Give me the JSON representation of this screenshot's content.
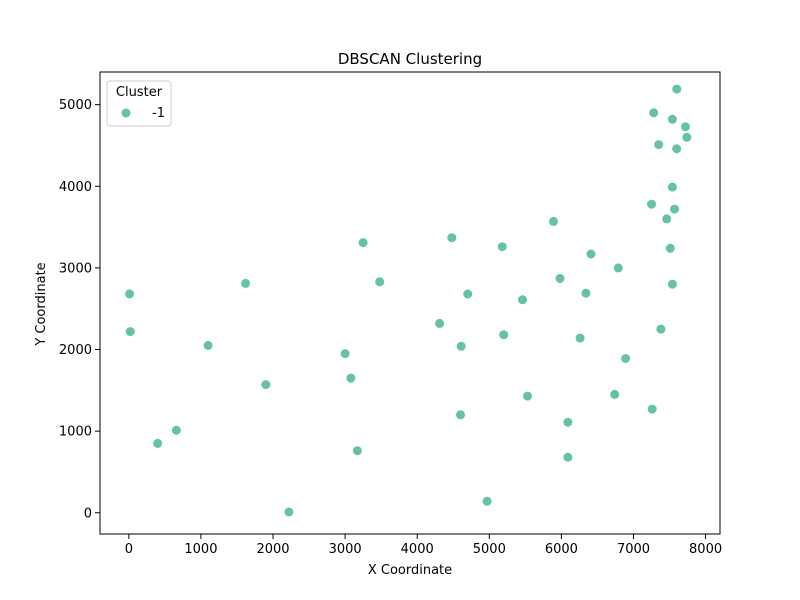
{
  "chart_data": {
    "type": "scatter",
    "title": "DBSCAN Clustering",
    "xlabel": "X Coordinate",
    "ylabel": "Y Coordinate",
    "xlim": [
      -400,
      8200
    ],
    "ylim": [
      -260,
      5400
    ],
    "xticks": [
      0,
      1000,
      2000,
      3000,
      4000,
      5000,
      6000,
      7000,
      8000
    ],
    "yticks": [
      0,
      1000,
      2000,
      3000,
      4000,
      5000
    ],
    "grid": false,
    "legend": {
      "title": "Cluster",
      "placement": "top-left"
    },
    "series": [
      {
        "name": "-1",
        "color": "#66c2a5",
        "points": [
          [
            7600,
            5190
          ],
          [
            7280,
            4900
          ],
          [
            7540,
            4820
          ],
          [
            7720,
            4730
          ],
          [
            7740,
            4600
          ],
          [
            7350,
            4510
          ],
          [
            7600,
            4460
          ],
          [
            7540,
            3990
          ],
          [
            7250,
            3780
          ],
          [
            7570,
            3720
          ],
          [
            7460,
            3600
          ],
          [
            7510,
            3240
          ],
          [
            5890,
            3570
          ],
          [
            4480,
            3370
          ],
          [
            3250,
            3310
          ],
          [
            5180,
            3260
          ],
          [
            6410,
            3170
          ],
          [
            6790,
            3000
          ],
          [
            5980,
            2870
          ],
          [
            3480,
            2830
          ],
          [
            1620,
            2810
          ],
          [
            7540,
            2800
          ],
          [
            4700,
            2680
          ],
          [
            6340,
            2690
          ],
          [
            5460,
            2610
          ],
          [
            10,
            2680
          ],
          [
            4310,
            2320
          ],
          [
            7380,
            2250
          ],
          [
            20,
            2220
          ],
          [
            5200,
            2180
          ],
          [
            6260,
            2140
          ],
          [
            1100,
            2050
          ],
          [
            4610,
            2040
          ],
          [
            3000,
            1950
          ],
          [
            6890,
            1890
          ],
          [
            3080,
            1650
          ],
          [
            1900,
            1570
          ],
          [
            6740,
            1450
          ],
          [
            5530,
            1430
          ],
          [
            7260,
            1270
          ],
          [
            4600,
            1200
          ],
          [
            6090,
            1110
          ],
          [
            660,
            1010
          ],
          [
            400,
            850
          ],
          [
            3170,
            760
          ],
          [
            6090,
            680
          ],
          [
            4970,
            140
          ],
          [
            2220,
            10
          ]
        ]
      }
    ]
  }
}
